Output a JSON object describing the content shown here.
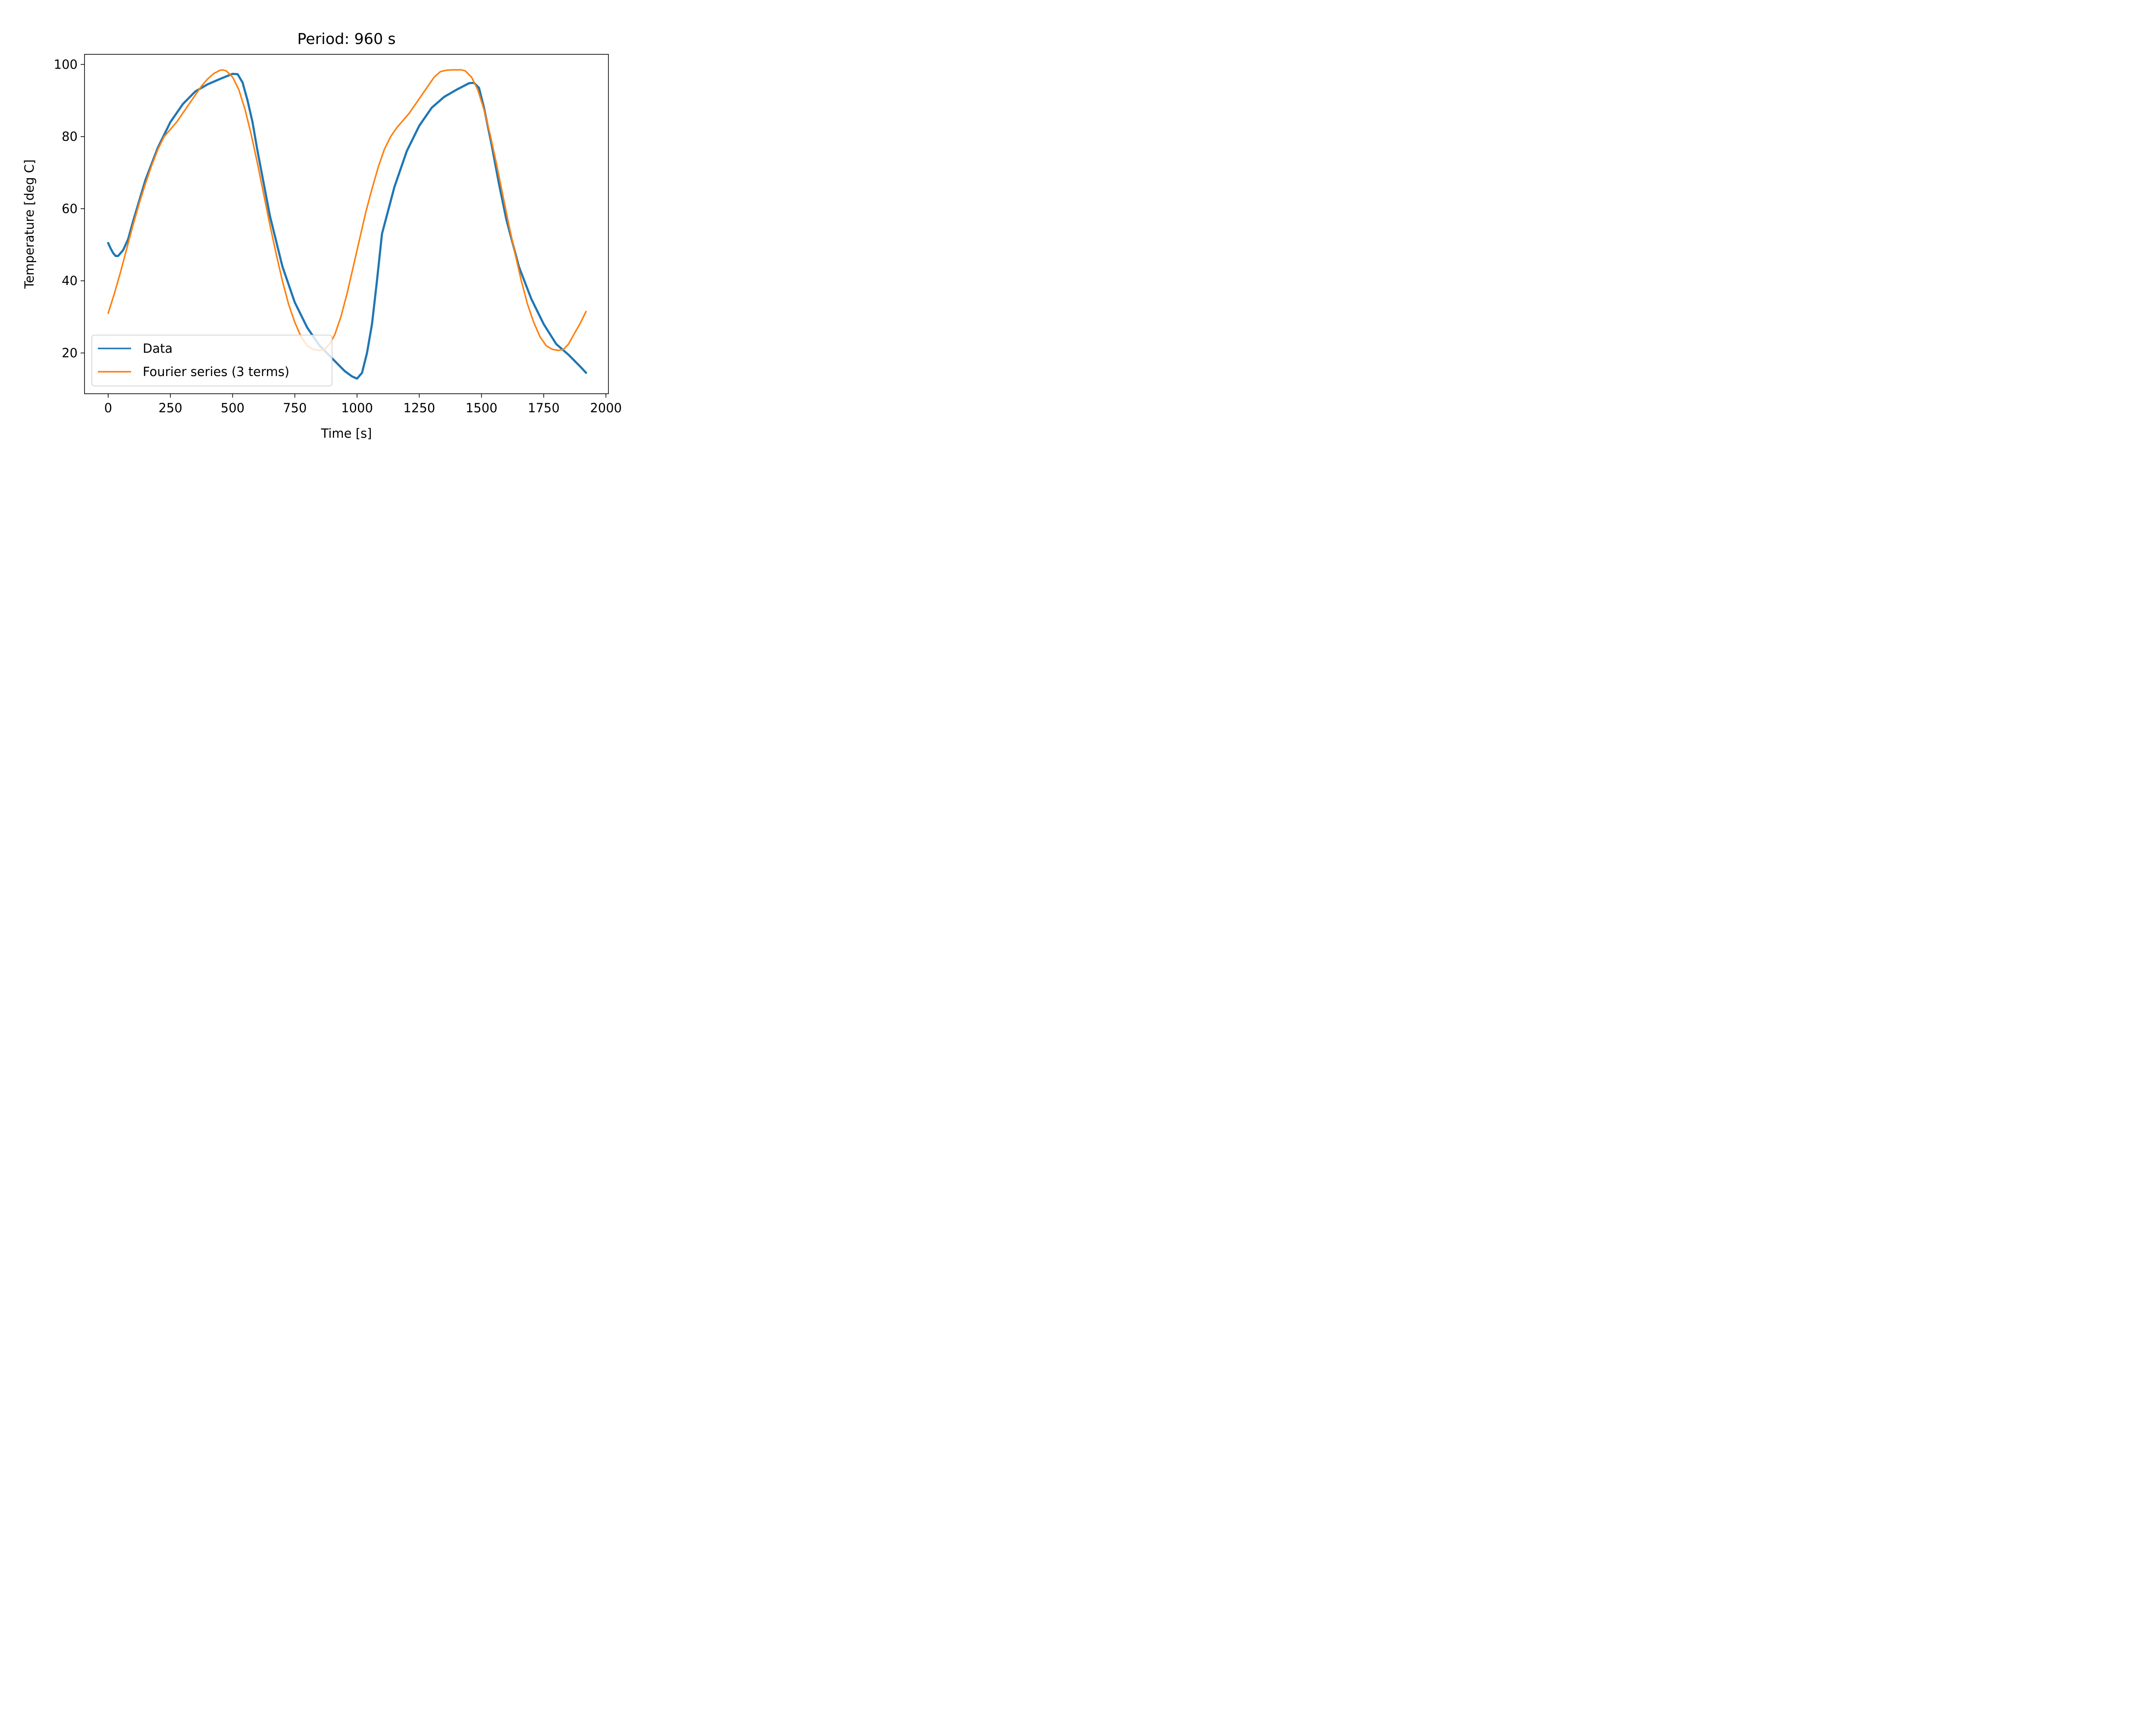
{
  "chart_data": {
    "type": "line",
    "title": "Period: 960 s",
    "xlabel": "Time [s]",
    "ylabel": "Temperature [deg C]",
    "xlim": [
      -95,
      2010
    ],
    "ylim": [
      8.7,
      102.8
    ],
    "xticks": [
      0,
      250,
      500,
      750,
      1000,
      1250,
      1500,
      1750,
      2000
    ],
    "xtick_labels": [
      "0",
      "250",
      "500",
      "750",
      "1000",
      "1250",
      "1500",
      "1750",
      "2000"
    ],
    "yticks": [
      20,
      40,
      60,
      80,
      100
    ],
    "ytick_labels": [
      "20",
      "40",
      "60",
      "80",
      "100"
    ],
    "grid": false,
    "legend_position": "lower-left",
    "series": [
      {
        "name": "Data",
        "color": "#1f77b4",
        "x": [
          0,
          10,
          20,
          30,
          40,
          60,
          80,
          100,
          150,
          200,
          250,
          300,
          350,
          400,
          450,
          500,
          520,
          540,
          560,
          580,
          600,
          650,
          700,
          750,
          800,
          850,
          900,
          950,
          980,
          1000,
          1020,
          1040,
          1060,
          1080,
          1100,
          1150,
          1200,
          1250,
          1300,
          1350,
          1400,
          1450,
          1470,
          1490,
          1510,
          1540,
          1570,
          1600,
          1650,
          1700,
          1750,
          1800,
          1850,
          1900,
          1920
        ],
        "y": [
          50.5,
          49,
          47.7,
          46.9,
          46.9,
          48.5,
          51.5,
          56.5,
          68,
          77,
          84,
          89,
          92.5,
          94.5,
          96,
          97.4,
          97.3,
          95,
          90,
          84,
          76,
          58,
          44,
          34,
          27,
          22,
          18.5,
          15,
          13.5,
          12.9,
          14.5,
          20,
          28,
          40,
          53,
          66,
          76,
          83,
          88,
          91,
          93,
          94.8,
          94.9,
          93.5,
          88,
          78,
          67,
          57,
          44,
          35,
          28,
          22.5,
          19.5,
          16,
          14.5
        ]
      },
      {
        "name": "Fourier series (3 terms)",
        "color": "#ff7f0e",
        "x": [
          0,
          25,
          50,
          75,
          100,
          125,
          150,
          175,
          200,
          225,
          250,
          275,
          300,
          325,
          350,
          375,
          400,
          425,
          450,
          460,
          475,
          500,
          525,
          550,
          575,
          600,
          625,
          650,
          675,
          700,
          725,
          750,
          775,
          800,
          825,
          850,
          870,
          890,
          910,
          935,
          960,
          985,
          1010,
          1035,
          1060,
          1085,
          1110,
          1135,
          1160,
          1185,
          1210,
          1235,
          1260,
          1285,
          1310,
          1335,
          1360,
          1385,
          1410,
          1420,
          1435,
          1460,
          1485,
          1510,
          1535,
          1560,
          1585,
          1610,
          1635,
          1660,
          1685,
          1710,
          1735,
          1760,
          1785,
          1810,
          1830,
          1850,
          1870,
          1895,
          1920
        ],
        "y": [
          31,
          36.5,
          42.5,
          49,
          55.5,
          61.5,
          67,
          72,
          76.5,
          80,
          82,
          84,
          86.5,
          89,
          91.5,
          94,
          96,
          97.5,
          98.4,
          98.5,
          98.2,
          96.5,
          93,
          87.5,
          80.5,
          72.5,
          64,
          55.5,
          47.5,
          40,
          33.5,
          28.5,
          24.5,
          22,
          21,
          20.7,
          21,
          22.5,
          25,
          30,
          36.5,
          44,
          51.5,
          59,
          65.5,
          71.5,
          76.5,
          80,
          82.5,
          84.5,
          86.5,
          89,
          91.5,
          94,
          96.5,
          98,
          98.4,
          98.5,
          98.5,
          98.5,
          98.2,
          96.5,
          93,
          87.5,
          80.5,
          72.5,
          64,
          55.5,
          47.5,
          40,
          33.5,
          28.5,
          24.5,
          22,
          21,
          20.7,
          21,
          22.5,
          25,
          28,
          31.5
        ]
      }
    ]
  }
}
